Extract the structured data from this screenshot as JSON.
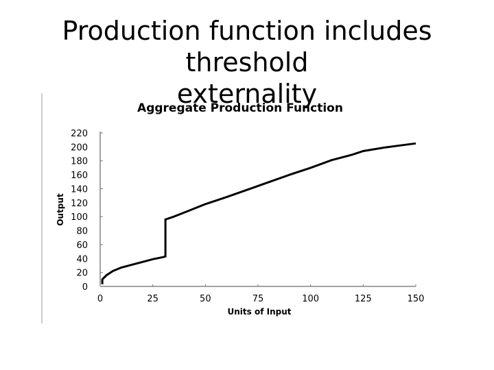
{
  "slide": {
    "title_line1": "Production function includes threshold",
    "title_line2": "externality"
  },
  "chart_data": {
    "type": "line",
    "title": "Aggregate Production Function",
    "xlabel": "Units of Input",
    "ylabel": "Output",
    "xlim": [
      0,
      150
    ],
    "ylim": [
      0,
      220
    ],
    "x_ticks": [
      0,
      25,
      50,
      75,
      100,
      125,
      150
    ],
    "y_ticks": [
      0,
      20,
      40,
      60,
      80,
      100,
      120,
      140,
      160,
      180,
      200,
      220
    ],
    "grid": false,
    "legend": "none",
    "line_color": "#000000",
    "series": [
      {
        "x": [
          1,
          1,
          3,
          6,
          10,
          15,
          20,
          25,
          30,
          31,
          31,
          35,
          40,
          50,
          60,
          75,
          90,
          100,
          110,
          120,
          125,
          135,
          140,
          150
        ],
        "y": [
          3,
          10,
          16,
          22,
          27,
          31,
          35,
          39,
          42,
          43,
          96,
          100,
          106,
          118,
          128,
          144,
          160,
          170,
          181,
          189,
          194,
          199,
          201,
          205
        ]
      }
    ]
  }
}
